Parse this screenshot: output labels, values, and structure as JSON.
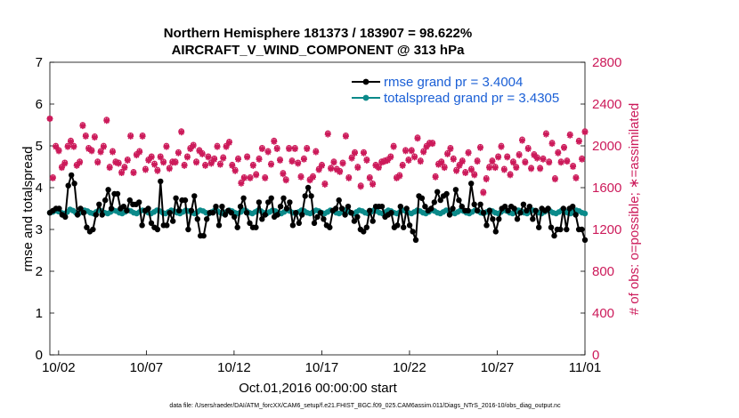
{
  "chart_data": {
    "type": "line",
    "title_line1": "Northern Hemisphere 181373 / 183907 = 98.622%",
    "title_line2": "AIRCRAFT_V_WIND_COMPONENT @ 313 hPa",
    "xlabel": "Oct.01,2016 00:00:00 start",
    "ylabel_left": "rmse and totalspread",
    "ylabel_right": "# of obs: o=possible; ∗=assimilated",
    "footnote": "data file: /Users/raeder/DAI/ATM_forcXX/CAM6_setup/f.e21.FHIST_BGC.f09_025.CAM6assim.011/Diags_NTrS_2016-10/obs_diag_output.nc",
    "x_range_days": [
      0.5,
      31.0
    ],
    "ylim_left": [
      0,
      7
    ],
    "ylim_right": [
      0,
      2800
    ],
    "x_ticks": [
      {
        "day": 1,
        "label": "10/02"
      },
      {
        "day": 6,
        "label": "10/07"
      },
      {
        "day": 11,
        "label": "10/12"
      },
      {
        "day": 16,
        "label": "10/17"
      },
      {
        "day": 21,
        "label": "10/22"
      },
      {
        "day": 26,
        "label": "10/27"
      },
      {
        "day": 31,
        "label": "11/01"
      }
    ],
    "y_ticks_left": [
      "0",
      "1",
      "2",
      "3",
      "4",
      "5",
      "6",
      "7"
    ],
    "y_ticks_right": [
      "0",
      "400",
      "800",
      "1200",
      "1600",
      "2000",
      "2400",
      "2800"
    ],
    "legend": [
      {
        "label": "rmse grand pr = 3.4004",
        "color": "#000000"
      },
      {
        "label": "totalspread grand pr = 3.4305",
        "color": "#0b8a8a"
      }
    ],
    "colors": {
      "rmse": "#000000",
      "spread": "#0b8a8a",
      "obs": "#cc1a5a",
      "legend_text": "#1a5fd6"
    },
    "series": [
      {
        "name": "rmse",
        "values": [
          3.4,
          3.45,
          3.5,
          3.5,
          3.35,
          3.3,
          4.05,
          4.3,
          4.1,
          3.35,
          3.5,
          3.4,
          3.05,
          2.95,
          3.0,
          3.35,
          3.6,
          3.35,
          3.7,
          3.95,
          3.5,
          3.85,
          3.85,
          3.5,
          3.55,
          3.45,
          3.7,
          3.6,
          3.6,
          3.65,
          3.1,
          3.45,
          3.5,
          3.15,
          3.05,
          3.0,
          4.15,
          3.1,
          3.1,
          3.4,
          3.2,
          3.75,
          3.45,
          3.7,
          3.7,
          3.0,
          3.45,
          3.8,
          3.25,
          2.85,
          2.85,
          3.25,
          3.4,
          3.4,
          3.55,
          3.1,
          3.55,
          3.35,
          3.45,
          3.4,
          3.3,
          3.05,
          3.55,
          3.75,
          3.4,
          3.15,
          3.05,
          3.05,
          3.65,
          3.25,
          3.35,
          3.65,
          3.75,
          3.3,
          3.35,
          3.55,
          3.75,
          3.5,
          3.65,
          3.1,
          3.4,
          3.15,
          3.35,
          3.8,
          4.0,
          3.8,
          3.15,
          3.3,
          3.4,
          3.25,
          3.1,
          3.05,
          3.45,
          3.5,
          3.7,
          3.5,
          3.35,
          3.55,
          3.4,
          3.2,
          3.3,
          3.0,
          2.95,
          3.05,
          3.45,
          3.2,
          3.55,
          3.55,
          3.55,
          3.3,
          3.35,
          3.4,
          3.05,
          3.1,
          3.55,
          3.05,
          3.5,
          3.1,
          2.95,
          2.75,
          3.8,
          3.75,
          3.55,
          3.45,
          3.5,
          3.65,
          3.9,
          3.7,
          3.8,
          3.85,
          3.35,
          3.5,
          3.95,
          3.7,
          3.55,
          3.45,
          3.45,
          4.1,
          3.6,
          3.45,
          3.6,
          3.4,
          3.1,
          3.45,
          3.25,
          2.95,
          3.25,
          3.5,
          3.55,
          3.45,
          3.55,
          3.5,
          3.25,
          3.4,
          3.6,
          3.45,
          3.55,
          3.25,
          3.45,
          3.05,
          3.5,
          3.45,
          3.5,
          3.05,
          2.85,
          3.0,
          3.0,
          3.5,
          3.0,
          3.5,
          3.55,
          3.35,
          3.0,
          3.0,
          2.75
        ]
      },
      {
        "name": "totalspread",
        "values": [
          3.4,
          3.42,
          3.45,
          3.43,
          3.4,
          3.38,
          3.42,
          3.48,
          3.45,
          3.4,
          3.38,
          3.42,
          3.46,
          3.44,
          3.4,
          3.38,
          3.42,
          3.46,
          3.44,
          3.4,
          3.38,
          3.42,
          3.46,
          3.44,
          3.4,
          3.38,
          3.42,
          3.46,
          3.44,
          3.4,
          3.38,
          3.42,
          3.46,
          3.44,
          3.4,
          3.38,
          3.42,
          3.46,
          3.44,
          3.4,
          3.38,
          3.42,
          3.46,
          3.44,
          3.4,
          3.38,
          3.42,
          3.46,
          3.44,
          3.4,
          3.38,
          3.42,
          3.46,
          3.44,
          3.4,
          3.38,
          3.42,
          3.46,
          3.44,
          3.4,
          3.38,
          3.42,
          3.46,
          3.44,
          3.4,
          3.38,
          3.42,
          3.46,
          3.44,
          3.4,
          3.38,
          3.42,
          3.46,
          3.44,
          3.4,
          3.38,
          3.42,
          3.46,
          3.44,
          3.4,
          3.38,
          3.42,
          3.46,
          3.44,
          3.4,
          3.38,
          3.42,
          3.46,
          3.44,
          3.4,
          3.38,
          3.42,
          3.46,
          3.44,
          3.4,
          3.38,
          3.42,
          3.46,
          3.44,
          3.4,
          3.38,
          3.42,
          3.46,
          3.44,
          3.4,
          3.38,
          3.42,
          3.46,
          3.44,
          3.4,
          3.38,
          3.42,
          3.46,
          3.44,
          3.4,
          3.38,
          3.42,
          3.46,
          3.44,
          3.4,
          3.38,
          3.42,
          3.46,
          3.44,
          3.4,
          3.38,
          3.42,
          3.46,
          3.44,
          3.4,
          3.38,
          3.42,
          3.46,
          3.44,
          3.4,
          3.38,
          3.42,
          3.46,
          3.44,
          3.4,
          3.38,
          3.42,
          3.46,
          3.44,
          3.4,
          3.38,
          3.42,
          3.46,
          3.44,
          3.4,
          3.38,
          3.42,
          3.46,
          3.44,
          3.4,
          3.38,
          3.42,
          3.46,
          3.44,
          3.4,
          3.38,
          3.42,
          3.46,
          3.44,
          3.4,
          3.38,
          3.42,
          3.46,
          3.44,
          3.4,
          3.38,
          3.42,
          3.46,
          3.44,
          3.4,
          3.38,
          3.42,
          3.46,
          3.44,
          3.4,
          3.38,
          3.42,
          3.46,
          3.44,
          3.4,
          3.38
        ]
      },
      {
        "name": "obs_possible",
        "values": [
          2260,
          1700,
          2000,
          1960,
          1800,
          1840,
          2000,
          2050,
          2000,
          1820,
          1850,
          2200,
          2100,
          1980,
          1960,
          2090,
          1850,
          1950,
          2000,
          2250,
          1800,
          1950,
          1850,
          1840,
          1750,
          1800,
          1870,
          2100,
          1750,
          1920,
          1950,
          2100,
          1780,
          1870,
          1900,
          1830,
          1770,
          1900,
          1850,
          2000,
          1790,
          1850,
          1850,
          1940,
          2140,
          1820,
          1900,
          1980,
          2010,
          1850,
          1960,
          1930,
          1820,
          1900,
          1840,
          1880,
          2000,
          1830,
          1890,
          2000,
          2040,
          1820,
          1770,
          1880,
          1650,
          1700,
          1900,
          1700,
          1820,
          1730,
          1880,
          1980,
          1700,
          1950,
          1830,
          2050,
          1980,
          1870,
          1740,
          1680,
          1980,
          1860,
          1980,
          1840,
          1710,
          1880,
          1980,
          1680,
          1710,
          1950,
          1780,
          1820,
          1640,
          2120,
          1790,
          1850,
          1780,
          1760,
          1840,
          2100,
          1700,
          1890,
          1940,
          1800,
          1620,
          1940,
          1870,
          1700,
          1640,
          1820,
          1800,
          1850,
          1860,
          1870,
          1900,
          2000,
          1700,
          1720,
          1820,
          1960,
          1870,
          1960,
          1900,
          2080,
          1860,
          1950,
          2000,
          2030,
          2030,
          1710,
          1830,
          1850,
          1800,
          1930,
          1980,
          1880,
          1770,
          1820,
          1860,
          1750,
          1940,
          1780,
          1730,
          1860,
          1990,
          1560,
          1690,
          1800,
          1860,
          1800,
          1900,
          2000,
          1780,
          1900,
          1730,
          1850,
          1800,
          1920,
          2060,
          1850,
          1980,
          1790,
          1920,
          1890,
          1790,
          1880,
          2120,
          1850,
          2030,
          1690,
          1940,
          1850,
          1990,
          1860,
          2110,
          1810,
          1700,
          2050,
          1880,
          2140
        ]
      },
      {
        "name": "obs_assimilated",
        "values": [
          2260,
          1690,
          1990,
          1950,
          1790,
          1830,
          1990,
          2040,
          1990,
          1810,
          1840,
          2190,
          2090,
          1970,
          1950,
          2080,
          1840,
          1940,
          1990,
          2240,
          1790,
          1940,
          1840,
          1830,
          1740,
          1790,
          1860,
          2090,
          1740,
          1910,
          1940,
          2090,
          1770,
          1860,
          1890,
          1820,
          1760,
          1890,
          1840,
          1990,
          1780,
          1840,
          1840,
          1930,
          2130,
          1810,
          1890,
          1970,
          2000,
          1840,
          1950,
          1920,
          1810,
          1890,
          1830,
          1870,
          1990,
          1820,
          1880,
          1990,
          2030,
          1810,
          1760,
          1870,
          1640,
          1690,
          1890,
          1690,
          1810,
          1720,
          1870,
          1970,
          1690,
          1940,
          1820,
          2040,
          1970,
          1860,
          1730,
          1670,
          1970,
          1850,
          1970,
          1830,
          1700,
          1870,
          1970,
          1670,
          1700,
          1940,
          1770,
          1810,
          1630,
          2110,
          1780,
          1840,
          1770,
          1750,
          1830,
          2090,
          1690,
          1880,
          1930,
          1790,
          1610,
          1930,
          1860,
          1690,
          1630,
          1810,
          1790,
          1840,
          1850,
          1860,
          1890,
          1990,
          1690,
          1710,
          1810,
          1950,
          1860,
          1950,
          1890,
          2070,
          1850,
          1940,
          1990,
          2020,
          2020,
          1700,
          1820,
          1840,
          1790,
          1920,
          1970,
          1870,
          1760,
          1810,
          1850,
          1740,
          1930,
          1770,
          1720,
          1850,
          1980,
          1550,
          1680,
          1790,
          1850,
          1790,
          1890,
          1990,
          1770,
          1890,
          1720,
          1840,
          1790,
          1910,
          2050,
          1840,
          1970,
          1780,
          1910,
          1880,
          1780,
          1870,
          2110,
          1840,
          2020,
          1680,
          1930,
          1840,
          1980,
          1850,
          2100,
          1800,
          1690,
          2040,
          1870,
          2130
        ]
      }
    ]
  }
}
